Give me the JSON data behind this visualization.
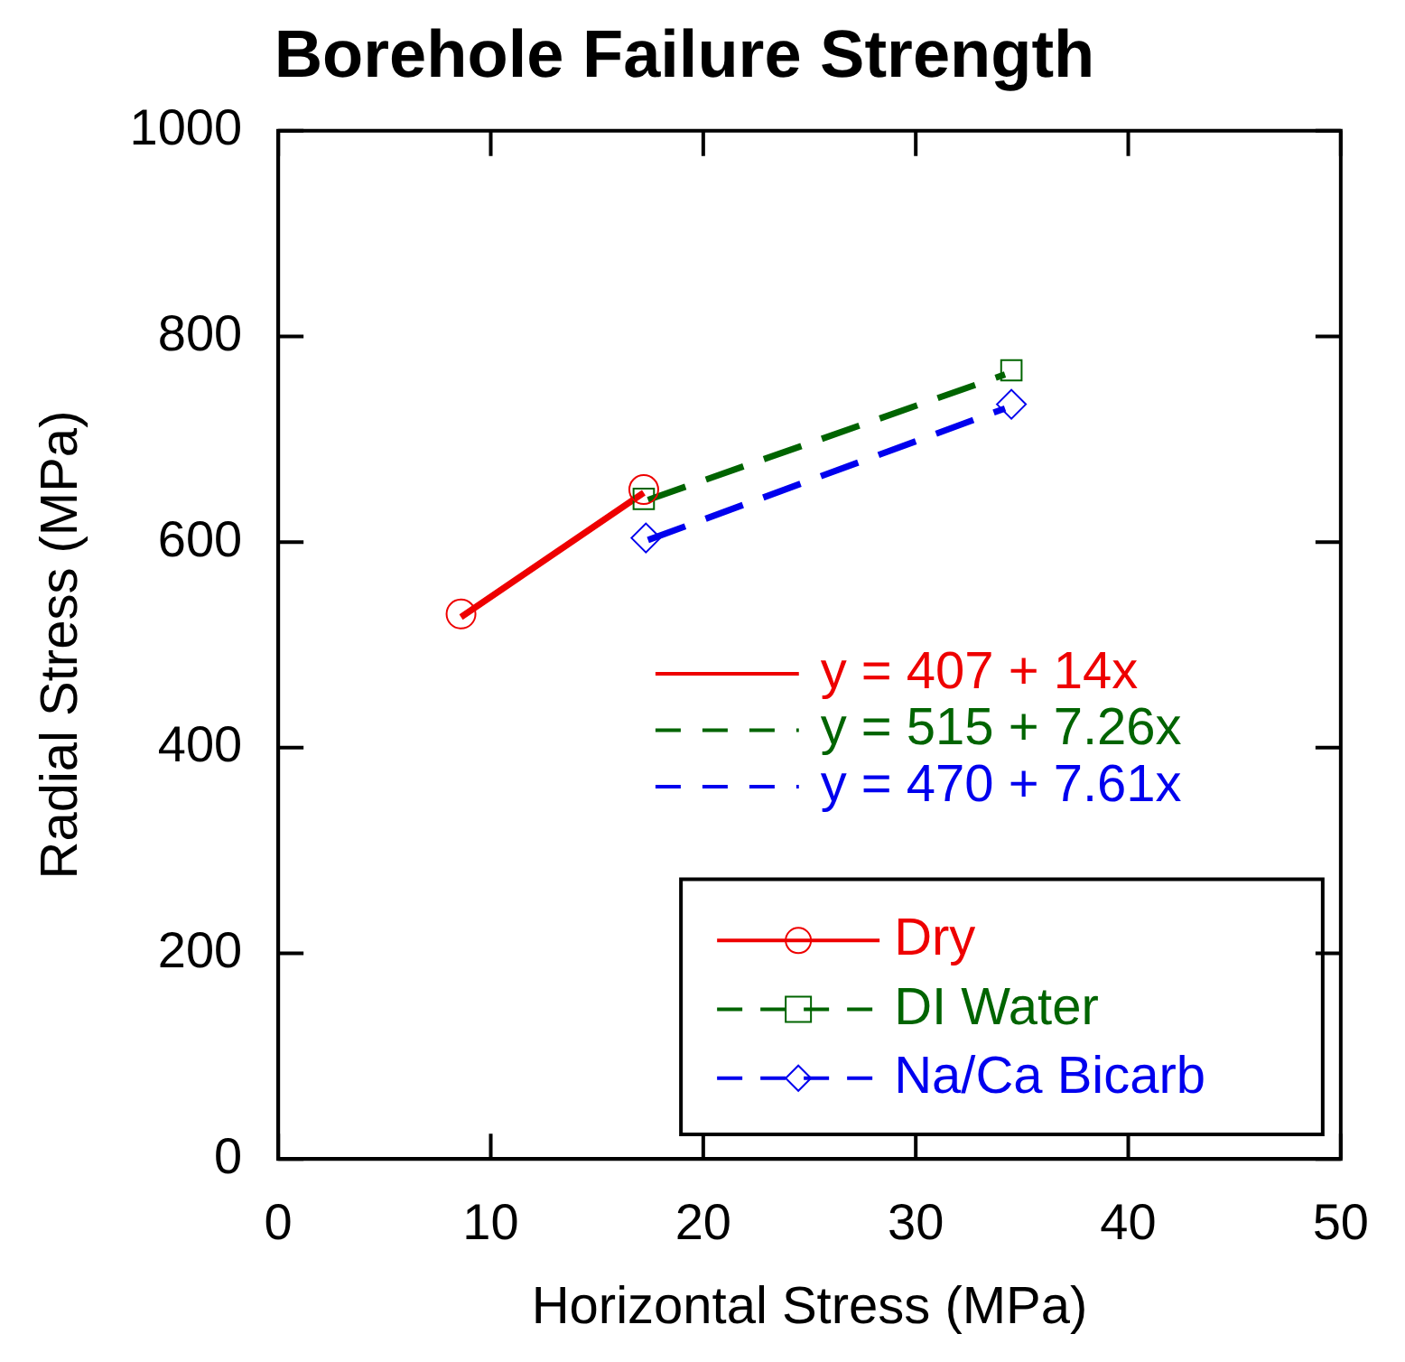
{
  "chart_data": {
    "type": "scatter",
    "title": "Borehole Failure Strength",
    "xlabel": "Horizontal Stress (MPa)",
    "ylabel": "Radial Stress (MPa)",
    "xlim": [
      0,
      50
    ],
    "xticks": [
      0,
      10,
      20,
      30,
      40,
      50
    ],
    "ylim": [
      0,
      1000
    ],
    "yticks": [
      0,
      200,
      400,
      600,
      800,
      1000
    ],
    "grid": false,
    "legend": "bottom right",
    "series": [
      {
        "name": "Dry",
        "color": "#ee0000",
        "marker": "circle",
        "x": [
          8.6,
          17.2
        ],
        "values": [
          530,
          651
        ]
      },
      {
        "name": "DI Water",
        "color": "#006400",
        "marker": "square",
        "x": [
          17.2,
          34.5
        ],
        "values": [
          642,
          767
        ]
      },
      {
        "name": "Na/Ca Bicarb",
        "color": "#0000ee",
        "marker": "diamond",
        "x": [
          17.3,
          34.5
        ],
        "values": [
          604,
          734
        ]
      },
      {
        "name": "y = 407 + 14x",
        "type": "line",
        "color": "#ee0000",
        "line_style": "solid",
        "marker": "none",
        "x": [
          8.6,
          17.2
        ],
        "values": [
          527,
          648
        ]
      },
      {
        "name": "y = 515 + 7.26x",
        "type": "line",
        "color": "#006400",
        "line_style": "dashed",
        "marker": "none",
        "x": [
          17.4,
          34.2
        ],
        "values": [
          641,
          763
        ]
      },
      {
        "name": "y = 470 + 7.61x",
        "type": "line",
        "color": "#0000ee",
        "line_style": "dashed",
        "marker": "none",
        "x": [
          17.4,
          34.2
        ],
        "values": [
          602,
          730
        ]
      }
    ]
  }
}
